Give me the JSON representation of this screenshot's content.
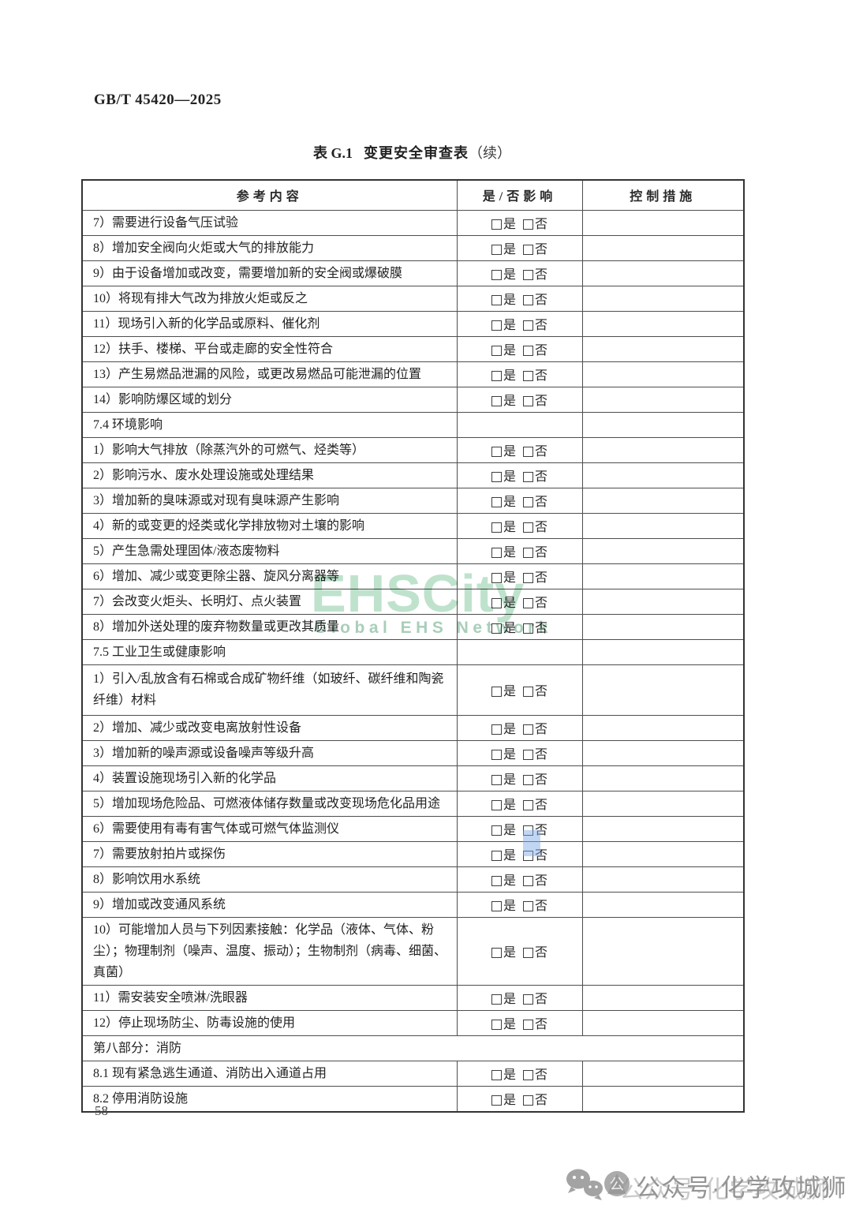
{
  "header": {
    "doc_number": "GB/T 45420—2025"
  },
  "title": {
    "prefix": "表 G.1",
    "main": "变更安全审查表",
    "suffix": "（续）"
  },
  "table": {
    "headers": [
      "参考内容",
      "是/否影响",
      "控制措施"
    ],
    "checkbox_yes": "是",
    "checkbox_no": "否",
    "rows": [
      {
        "type": "item",
        "text": "7）需要进行设备气压试验"
      },
      {
        "type": "item",
        "text": "8）增加安全阀向火炬或大气的排放能力"
      },
      {
        "type": "item",
        "text": "9）由于设备增加或改变，需要增加新的安全阀或爆破膜"
      },
      {
        "type": "item",
        "text": "10）将现有排大气改为排放火炬或反之"
      },
      {
        "type": "item",
        "text": "11）现场引入新的化学品或原料、催化剂"
      },
      {
        "type": "item",
        "text": "12）扶手、楼梯、平台或走廊的安全性符合"
      },
      {
        "type": "item",
        "text": "13）产生易燃品泄漏的风险，或更改易燃品可能泄漏的位置"
      },
      {
        "type": "item",
        "text": "14）影响防爆区域的划分"
      },
      {
        "type": "section",
        "text": "7.4 环境影响"
      },
      {
        "type": "item",
        "text": "1）影响大气排放（除蒸汽外的可燃气、烃类等）"
      },
      {
        "type": "item",
        "text": "2）影响污水、废水处理设施或处理结果"
      },
      {
        "type": "item",
        "text": "3）增加新的臭味源或对现有臭味源产生影响"
      },
      {
        "type": "item",
        "text": "4）新的或变更的烃类或化学排放物对土壤的影响"
      },
      {
        "type": "item",
        "text": "5）产生急需处理固体/液态废物料"
      },
      {
        "type": "item",
        "text": "6）增加、减少或变更除尘器、旋风分离器等"
      },
      {
        "type": "item",
        "text": "7）会改变火炬头、长明灯、点火装置"
      },
      {
        "type": "item",
        "text": "8）增加外送处理的废弃物数量或更改其质量"
      },
      {
        "type": "section",
        "text": "7.5 工业卫生或健康影响"
      },
      {
        "type": "item",
        "tall": true,
        "text": "1）引入/乱放含有石棉或合成矿物纤维（如玻纤、碳纤维和陶瓷纤维）材料"
      },
      {
        "type": "item",
        "text": "2）增加、减少或改变电离放射性设备"
      },
      {
        "type": "item",
        "text": "3）增加新的噪声源或设备噪声等级升高"
      },
      {
        "type": "item",
        "text": "4）装置设施现场引入新的化学品"
      },
      {
        "type": "item",
        "text": "5）增加现场危险品、可燃液体储存数量或改变现场危化品用途"
      },
      {
        "type": "item",
        "text": "6）需要使用有毒有害气体或可燃气体监测仪"
      },
      {
        "type": "item",
        "text": "7）需要放射拍片或探伤"
      },
      {
        "type": "item",
        "text": "8）影响饮用水系统"
      },
      {
        "type": "item",
        "text": "9）增加或改变通风系统"
      },
      {
        "type": "item",
        "tall": true,
        "text": "10）可能增加人员与下列因素接触：化学品（液体、气体、粉尘）；物理制剂（噪声、温度、振动）；生物制剂（病毒、细菌、真菌）"
      },
      {
        "type": "item",
        "text": "11）需安装安全喷淋/洗眼器"
      },
      {
        "type": "item",
        "text": "12）停止现场防尘、防毒设施的使用"
      },
      {
        "type": "section_full",
        "text": "第八部分：消防"
      },
      {
        "type": "item",
        "text": "8.1 现有紧急逃生通道、消防出入通道占用"
      },
      {
        "type": "item",
        "text": "8.2 停用消防设施"
      }
    ]
  },
  "watermark": {
    "brand": "EHSCity",
    "brand_sub": "Global EHS Network",
    "brand_color": "#bfe2cc",
    "sub_color": "#a9ceba"
  },
  "artifact": {
    "highlight_color": "#7daae5"
  },
  "footer": {
    "page_number": "58",
    "wechat_text": "公众号·化学攻城狮",
    "gongzhonghao_glyph": "公"
  }
}
